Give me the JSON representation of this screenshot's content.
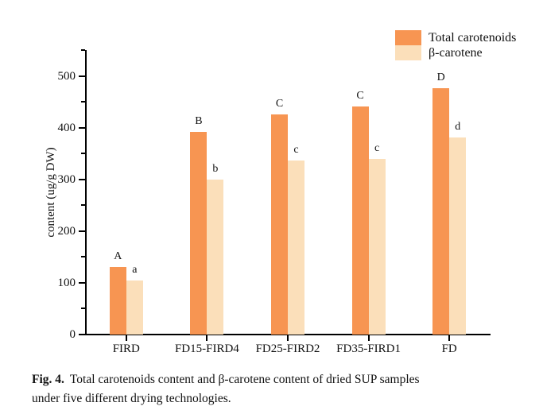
{
  "figure": {
    "caption_label": "Fig. 4.",
    "caption_line1": "Total carotenoids content and β-carotene content of dried SUP samples",
    "caption_line2": "under five different drying technologies."
  },
  "chart_data": {
    "type": "bar",
    "title": "",
    "categories": [
      "FIRD",
      "FD15-FIRD4",
      "FD25-FIRD2",
      "FD35-FIRD1",
      "FD"
    ],
    "series": [
      {
        "name": "Total carotenoids",
        "color": "#f79552",
        "values": [
          130,
          391,
          426,
          441,
          476
        ],
        "sig_labels": [
          "A",
          "B",
          "C",
          "C",
          "D"
        ]
      },
      {
        "name": "β-carotene",
        "color": "#fbdfba",
        "values": [
          105,
          300,
          337,
          339,
          381
        ],
        "sig_labels": [
          "a",
          "b",
          "c",
          "c",
          "d"
        ]
      }
    ],
    "xlabel": "",
    "ylabel": "content (ug/g DW)",
    "ylim": [
      0,
      550
    ],
    "ytick_step": 100,
    "yminor_step": 50,
    "ytick_labels": [
      "0",
      "100",
      "200",
      "300",
      "400",
      "500"
    ],
    "grid": false,
    "legend_position": "top-right",
    "axis_color": "#000000",
    "background_color": "#ffffff"
  }
}
